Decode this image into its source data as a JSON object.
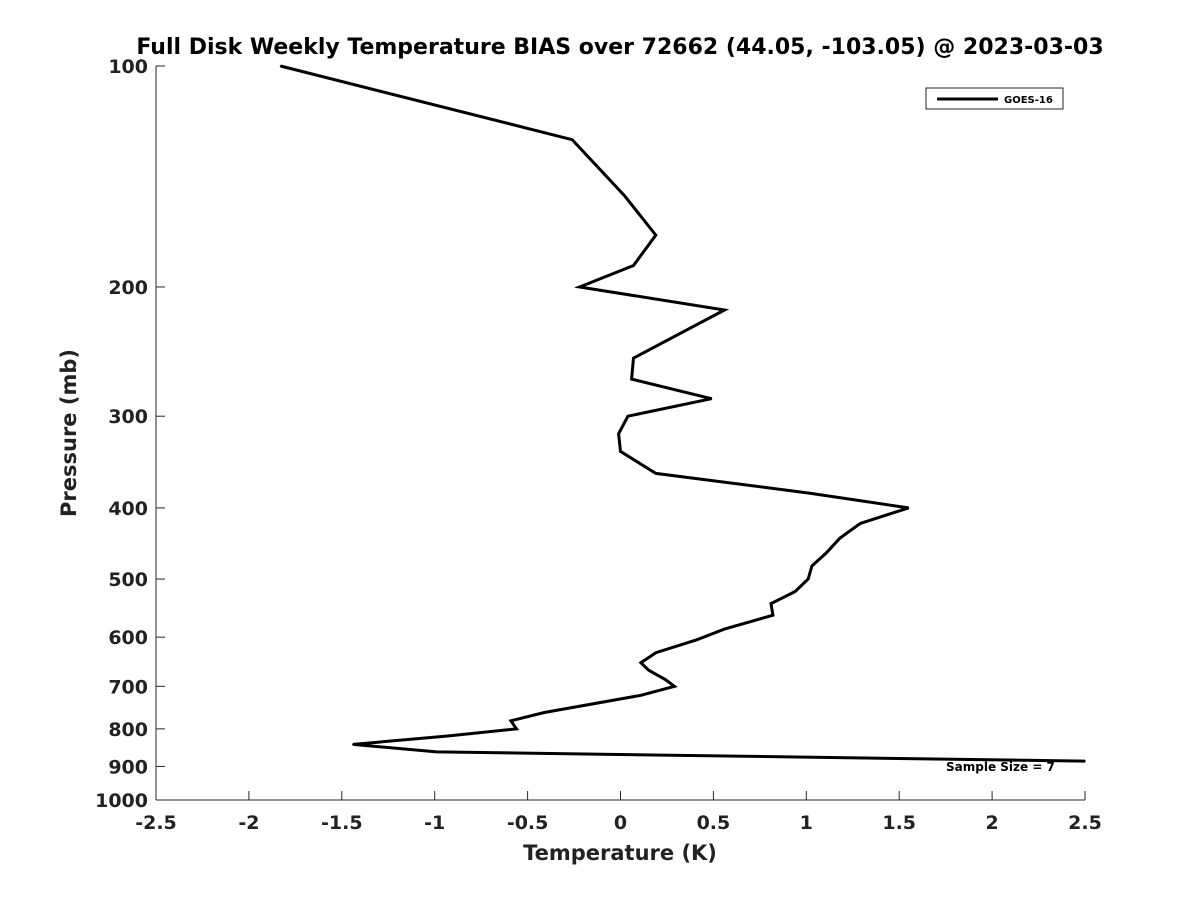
{
  "chart_data": {
    "type": "line",
    "title": "Full Disk Weekly Temperature BIAS over 72662 (44.05, -103.05) @ 2023-03-03",
    "xlabel": "Temperature (K)",
    "ylabel": "Pressure (mb)",
    "xlim": [
      -2.5,
      2.5
    ],
    "ylim": [
      100,
      1000
    ],
    "y_scale": "log",
    "y_reversed": true,
    "grid": false,
    "legend_position": "top-right",
    "x_ticks": [
      "-2.5",
      "-2",
      "-1.5",
      "-1",
      "-0.5",
      "0",
      "0.5",
      "1",
      "1.5",
      "2",
      "2.5"
    ],
    "y_ticks": [
      "100",
      "200",
      "300",
      "400",
      "500",
      "600",
      "700",
      "800",
      "900",
      "1000"
    ],
    "annotation": "Sample Size = 7",
    "series": [
      {
        "name": "GOES-16",
        "color": "#000000",
        "points": [
          {
            "x": -1.83,
            "y": 100
          },
          {
            "x": -0.26,
            "y": 126
          },
          {
            "x": 0.02,
            "y": 150
          },
          {
            "x": 0.19,
            "y": 170
          },
          {
            "x": 0.07,
            "y": 187
          },
          {
            "x": -0.22,
            "y": 200
          },
          {
            "x": 0.56,
            "y": 215
          },
          {
            "x": 0.07,
            "y": 250
          },
          {
            "x": 0.06,
            "y": 267
          },
          {
            "x": 0.49,
            "y": 284
          },
          {
            "x": 0.04,
            "y": 300
          },
          {
            "x": -0.01,
            "y": 317
          },
          {
            "x": 0.0,
            "y": 335
          },
          {
            "x": 0.19,
            "y": 359
          },
          {
            "x": 1.02,
            "y": 382
          },
          {
            "x": 1.55,
            "y": 400
          },
          {
            "x": 1.29,
            "y": 420
          },
          {
            "x": 1.18,
            "y": 440
          },
          {
            "x": 1.11,
            "y": 460
          },
          {
            "x": 1.03,
            "y": 480
          },
          {
            "x": 1.01,
            "y": 500
          },
          {
            "x": 0.94,
            "y": 520
          },
          {
            "x": 0.81,
            "y": 540
          },
          {
            "x": 0.82,
            "y": 560
          },
          {
            "x": 0.56,
            "y": 585
          },
          {
            "x": 0.41,
            "y": 605
          },
          {
            "x": 0.19,
            "y": 630
          },
          {
            "x": 0.11,
            "y": 650
          },
          {
            "x": 0.15,
            "y": 665
          },
          {
            "x": 0.24,
            "y": 685
          },
          {
            "x": 0.29,
            "y": 700
          },
          {
            "x": 0.11,
            "y": 720
          },
          {
            "x": -0.41,
            "y": 760
          },
          {
            "x": -0.59,
            "y": 780
          },
          {
            "x": -0.56,
            "y": 800
          },
          {
            "x": -0.93,
            "y": 818
          },
          {
            "x": -1.44,
            "y": 840
          },
          {
            "x": -0.99,
            "y": 860
          },
          {
            "x": 2.5,
            "y": 885
          }
        ]
      }
    ]
  }
}
